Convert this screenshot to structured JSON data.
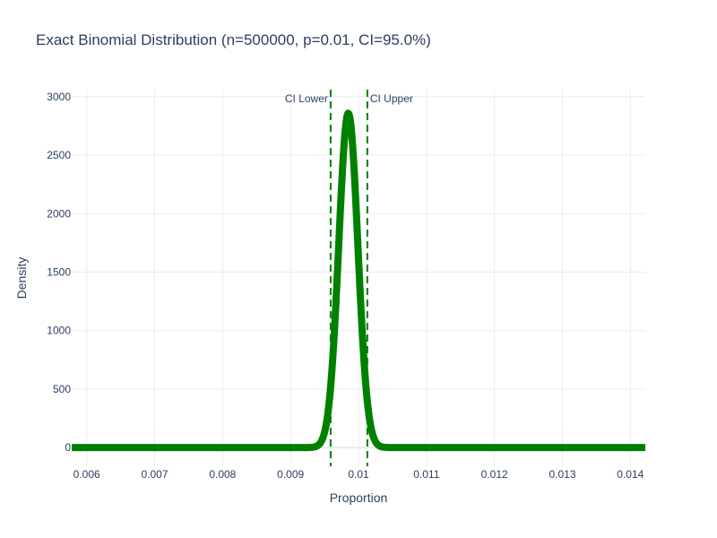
{
  "chart_data": {
    "type": "line",
    "title": "Exact Binomial Distribution (n=500000, p=0.01, CI=95.0%)",
    "xlabel": "Proportion",
    "ylabel": "Density",
    "xlim": [
      0.00578,
      0.01422
    ],
    "ylim": [
      -160,
      3060
    ],
    "grid": true,
    "legend": "none",
    "x_ticks": [
      0.006,
      0.007,
      0.008,
      0.009,
      0.01,
      0.011,
      0.012,
      0.013,
      0.014
    ],
    "x_tick_labels": [
      "0.006",
      "0.007",
      "0.008",
      "0.009",
      "0.01",
      "0.011",
      "0.012",
      "0.013",
      "0.014"
    ],
    "y_ticks": [
      0,
      500,
      1000,
      1500,
      2000,
      2500,
      3000
    ],
    "y_tick_labels": [
      "0",
      "500",
      "1000",
      "1500",
      "2000",
      "2500",
      "3000"
    ],
    "series": [
      {
        "color": "#008000",
        "distribution": "binomial-normal-approx",
        "n": 500000,
        "p": 0.01,
        "peak_x": 0.00985,
        "peak_density": 2860,
        "x_range": [
          0.00578,
          0.01422
        ]
      }
    ],
    "ci_lines": [
      {
        "label": "CI Lower",
        "x": 0.00959,
        "color": "#008000"
      },
      {
        "label": "CI Upper",
        "x": 0.01013,
        "color": "#008000"
      }
    ]
  }
}
